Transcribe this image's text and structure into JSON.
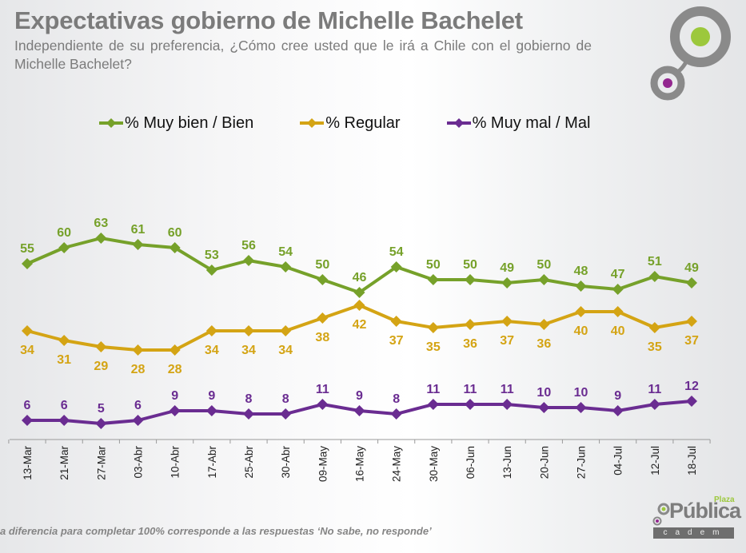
{
  "header": {
    "title": "Expectativas gobierno de Michelle Bachelet",
    "subtitle": "Independiente de su preferencia, ¿Cómo cree usted que le irá a Chile con el gobierno de Michelle Bachelet?"
  },
  "footnote": "a diferencia para completar 100% corresponde a las respuestas ‘No sabe, no responde’",
  "brand": {
    "plaza": "Plaza",
    "publica": "Pública",
    "cadem": "cadem",
    "colors": {
      "green": "#9cc83c",
      "purple": "#93278f",
      "gray": "#7d7d7d"
    }
  },
  "chart_data": {
    "type": "line",
    "title": "Expectativas gobierno de Michelle Bachelet",
    "xlabel": "",
    "ylabel": "",
    "ylim": [
      0,
      70
    ],
    "grid": false,
    "legend_position": "top",
    "x": [
      "13-Mar",
      "21-Mar",
      "27-Mar",
      "03-Abr",
      "10-Abr",
      "17-Abr",
      "25-Abr",
      "30-Abr",
      "09-May",
      "16-May",
      "24-May",
      "30-May",
      "06-Jun",
      "13-Jun",
      "20-Jun",
      "27-Jun",
      "04-Jul",
      "12-Jul",
      "18-Jul"
    ],
    "series": [
      {
        "name": "% Muy bien / Bien",
        "color": "#76a12a",
        "label_position": "above",
        "values": [
          55,
          60,
          63,
          61,
          60,
          53,
          56,
          54,
          50,
          46,
          54,
          50,
          50,
          49,
          50,
          48,
          47,
          51,
          49
        ]
      },
      {
        "name": "% Regular",
        "color": "#d4a414",
        "label_position": "below",
        "values": [
          34,
          31,
          29,
          28,
          28,
          34,
          34,
          34,
          38,
          42,
          37,
          35,
          36,
          37,
          36,
          40,
          40,
          35,
          37
        ]
      },
      {
        "name": "% Muy mal / Mal",
        "color": "#6a2c91",
        "label_position": "above",
        "values": [
          6,
          6,
          5,
          6,
          9,
          9,
          8,
          8,
          11,
          9,
          8,
          11,
          11,
          11,
          10,
          10,
          9,
          11,
          12
        ]
      }
    ]
  }
}
